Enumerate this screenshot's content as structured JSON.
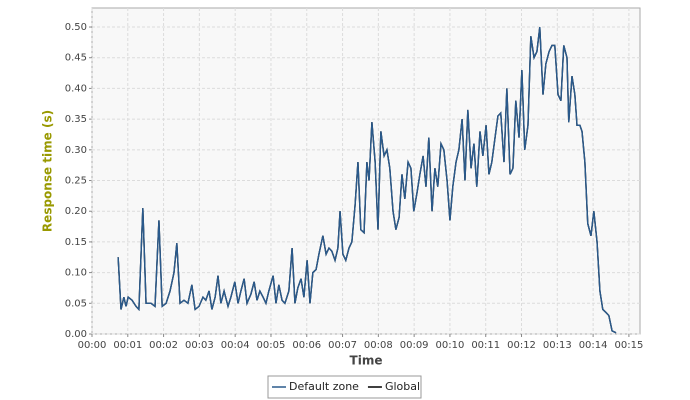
{
  "chart_data": {
    "type": "line",
    "xlabel": "Time",
    "ylabel": "Response time (s)",
    "xlim": [
      0,
      15.31
    ],
    "ylim": [
      0,
      0.531
    ],
    "xticks": [
      {
        "value": 0,
        "label": "00:00"
      },
      {
        "value": 1,
        "label": "00:01"
      },
      {
        "value": 2,
        "label": "00:02"
      },
      {
        "value": 3,
        "label": "00:03"
      },
      {
        "value": 4,
        "label": "00:04"
      },
      {
        "value": 5,
        "label": "00:05"
      },
      {
        "value": 6,
        "label": "00:06"
      },
      {
        "value": 7,
        "label": "00:07"
      },
      {
        "value": 8,
        "label": "00:08"
      },
      {
        "value": 9,
        "label": "00:09"
      },
      {
        "value": 10,
        "label": "00:10"
      },
      {
        "value": 11,
        "label": "00:11"
      },
      {
        "value": 12,
        "label": "00:12"
      },
      {
        "value": 13,
        "label": "00:13"
      },
      {
        "value": 14,
        "label": "00:14"
      },
      {
        "value": 15,
        "label": "00:15"
      }
    ],
    "yticks": [
      {
        "value": 0,
        "label": "0.00"
      },
      {
        "value": 0.05,
        "label": "0.05"
      },
      {
        "value": 0.1,
        "label": "0.10"
      },
      {
        "value": 0.15,
        "label": "0.15"
      },
      {
        "value": 0.2,
        "label": "0.20"
      },
      {
        "value": 0.25,
        "label": "0.25"
      },
      {
        "value": 0.3,
        "label": "0.30"
      },
      {
        "value": 0.35,
        "label": "0.35"
      },
      {
        "value": 0.4,
        "label": "0.40"
      },
      {
        "value": 0.45,
        "label": "0.45"
      },
      {
        "value": 0.5,
        "label": "0.50"
      }
    ],
    "grid": true,
    "x": [
      0.73,
      0.81,
      0.89,
      0.95,
      1.01,
      1.12,
      1.23,
      1.31,
      1.42,
      1.51,
      1.65,
      1.76,
      1.87,
      1.96,
      2.07,
      2.18,
      2.29,
      2.37,
      2.46,
      2.57,
      2.68,
      2.79,
      2.88,
      2.99,
      3.1,
      3.18,
      3.27,
      3.35,
      3.44,
      3.52,
      3.6,
      3.69,
      3.8,
      3.88,
      3.99,
      4.08,
      4.16,
      4.25,
      4.33,
      4.44,
      4.53,
      4.61,
      4.69,
      4.78,
      4.86,
      4.94,
      5.06,
      5.14,
      5.22,
      5.31,
      5.39,
      5.5,
      5.59,
      5.67,
      5.75,
      5.84,
      5.92,
      6.01,
      6.09,
      6.17,
      6.26,
      6.34,
      6.45,
      6.54,
      6.62,
      6.7,
      6.79,
      6.87,
      6.93,
      7.01,
      7.09,
      7.18,
      7.26,
      7.35,
      7.43,
      7.51,
      7.6,
      7.68,
      7.74,
      7.82,
      7.91,
      7.99,
      8.07,
      8.16,
      8.24,
      8.32,
      8.41,
      8.49,
      8.58,
      8.66,
      8.74,
      8.83,
      8.91,
      8.99,
      9.08,
      9.16,
      9.25,
      9.33,
      9.41,
      9.5,
      9.58,
      9.66,
      9.75,
      9.83,
      9.92,
      10.0,
      10.08,
      10.17,
      10.25,
      10.34,
      10.42,
      10.5,
      10.59,
      10.67,
      10.75,
      10.84,
      10.92,
      11.01,
      11.09,
      11.17,
      11.26,
      11.34,
      11.42,
      11.51,
      11.59,
      11.68,
      11.76,
      11.84,
      11.93,
      12.01,
      12.09,
      12.18,
      12.26,
      12.35,
      12.43,
      12.51,
      12.6,
      12.68,
      12.77,
      12.85,
      12.93,
      13.02,
      13.1,
      13.18,
      13.27,
      13.32,
      13.41,
      13.49,
      13.55,
      13.63,
      13.69,
      13.77,
      13.85,
      13.94,
      14.02,
      14.11,
      14.19,
      14.27,
      14.36,
      14.44,
      14.53,
      14.64
    ],
    "series": [
      {
        "name": "Global",
        "color": "#000000",
        "values": [
          0.125,
          0.04,
          0.06,
          0.045,
          0.06,
          0.055,
          0.045,
          0.04,
          0.205,
          0.05,
          0.05,
          0.045,
          0.185,
          0.045,
          0.05,
          0.07,
          0.1,
          0.148,
          0.05,
          0.055,
          0.05,
          0.08,
          0.04,
          0.045,
          0.06,
          0.055,
          0.07,
          0.04,
          0.06,
          0.095,
          0.05,
          0.07,
          0.045,
          0.06,
          0.085,
          0.05,
          0.07,
          0.09,
          0.05,
          0.065,
          0.085,
          0.055,
          0.07,
          0.06,
          0.05,
          0.07,
          0.095,
          0.05,
          0.08,
          0.055,
          0.05,
          0.07,
          0.14,
          0.05,
          0.075,
          0.09,
          0.06,
          0.12,
          0.05,
          0.1,
          0.105,
          0.13,
          0.16,
          0.13,
          0.14,
          0.135,
          0.12,
          0.14,
          0.2,
          0.13,
          0.12,
          0.14,
          0.15,
          0.21,
          0.28,
          0.17,
          0.165,
          0.28,
          0.25,
          0.345,
          0.28,
          0.17,
          0.33,
          0.29,
          0.3,
          0.27,
          0.2,
          0.17,
          0.19,
          0.26,
          0.22,
          0.28,
          0.27,
          0.2,
          0.23,
          0.26,
          0.29,
          0.24,
          0.32,
          0.2,
          0.27,
          0.24,
          0.31,
          0.3,
          0.25,
          0.185,
          0.24,
          0.28,
          0.3,
          0.35,
          0.25,
          0.365,
          0.27,
          0.31,
          0.24,
          0.33,
          0.29,
          0.34,
          0.26,
          0.28,
          0.32,
          0.355,
          0.36,
          0.28,
          0.4,
          0.26,
          0.27,
          0.38,
          0.32,
          0.43,
          0.3,
          0.34,
          0.485,
          0.45,
          0.46,
          0.5,
          0.39,
          0.44,
          0.46,
          0.47,
          0.47,
          0.39,
          0.38,
          0.47,
          0.45,
          0.345,
          0.42,
          0.39,
          0.34,
          0.34,
          0.33,
          0.28,
          0.18,
          0.16,
          0.2,
          0.15,
          0.07,
          0.04,
          0.035,
          0.03,
          0.005,
          0.002
        ]
      },
      {
        "name": "Default zone",
        "color": "#2a5a8c",
        "values": [
          0.125,
          0.04,
          0.06,
          0.045,
          0.06,
          0.055,
          0.045,
          0.04,
          0.205,
          0.05,
          0.05,
          0.045,
          0.185,
          0.045,
          0.05,
          0.07,
          0.1,
          0.148,
          0.05,
          0.055,
          0.05,
          0.08,
          0.04,
          0.045,
          0.06,
          0.055,
          0.07,
          0.04,
          0.06,
          0.095,
          0.05,
          0.07,
          0.045,
          0.06,
          0.085,
          0.05,
          0.07,
          0.09,
          0.05,
          0.065,
          0.085,
          0.055,
          0.07,
          0.06,
          0.05,
          0.07,
          0.095,
          0.05,
          0.08,
          0.055,
          0.05,
          0.07,
          0.14,
          0.05,
          0.075,
          0.09,
          0.06,
          0.12,
          0.05,
          0.1,
          0.105,
          0.13,
          0.16,
          0.13,
          0.14,
          0.135,
          0.12,
          0.14,
          0.2,
          0.13,
          0.12,
          0.14,
          0.15,
          0.21,
          0.28,
          0.17,
          0.165,
          0.28,
          0.25,
          0.345,
          0.28,
          0.17,
          0.33,
          0.29,
          0.3,
          0.27,
          0.2,
          0.17,
          0.19,
          0.26,
          0.22,
          0.28,
          0.27,
          0.2,
          0.23,
          0.26,
          0.29,
          0.24,
          0.32,
          0.2,
          0.27,
          0.24,
          0.31,
          0.3,
          0.25,
          0.185,
          0.24,
          0.28,
          0.3,
          0.35,
          0.25,
          0.365,
          0.27,
          0.31,
          0.24,
          0.33,
          0.29,
          0.34,
          0.26,
          0.28,
          0.32,
          0.355,
          0.36,
          0.28,
          0.4,
          0.26,
          0.27,
          0.38,
          0.32,
          0.43,
          0.3,
          0.34,
          0.485,
          0.45,
          0.46,
          0.5,
          0.39,
          0.44,
          0.46,
          0.47,
          0.47,
          0.39,
          0.38,
          0.47,
          0.45,
          0.345,
          0.42,
          0.39,
          0.34,
          0.34,
          0.33,
          0.28,
          0.18,
          0.16,
          0.2,
          0.15,
          0.07,
          0.04,
          0.035,
          0.03,
          0.005,
          0.002
        ]
      }
    ],
    "legend_order": [
      "Default zone",
      "Global"
    ]
  }
}
